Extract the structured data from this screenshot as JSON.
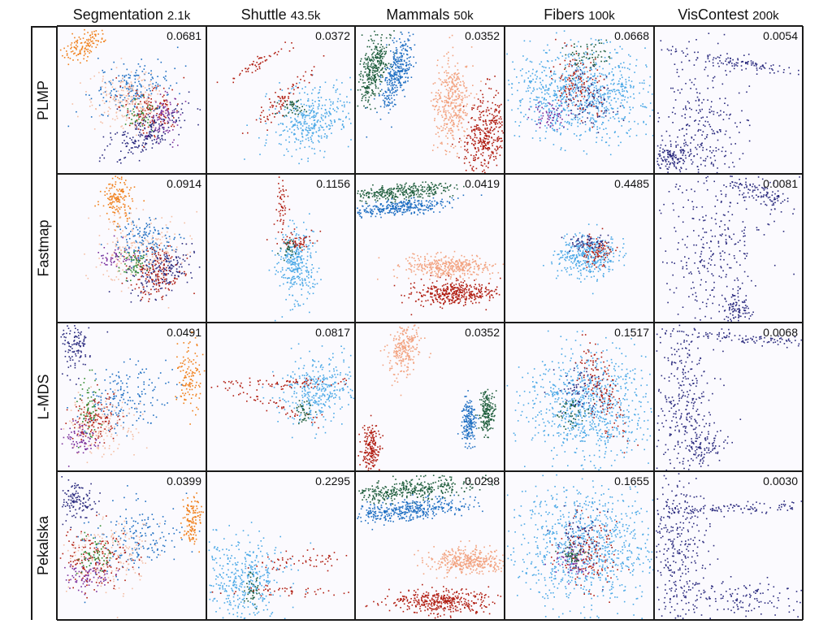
{
  "figure": {
    "datasets": [
      {
        "name": "Segmentation",
        "size": "2.1k"
      },
      {
        "name": "Shuttle",
        "size": "43.5k"
      },
      {
        "name": "Mammals",
        "size": "50k"
      },
      {
        "name": "Fibers",
        "size": "100k"
      },
      {
        "name": "VisContest",
        "size": "200k"
      }
    ],
    "methods": [
      "PLMP",
      "Fastmap",
      "L-MDS",
      "Pekalska"
    ],
    "stress": [
      [
        "0.0681",
        "0.0372",
        "0.0352",
        "0.0668",
        "0.0054"
      ],
      [
        "0.0914",
        "0.1156",
        "0.0419",
        "0.4485",
        "0.0081"
      ],
      [
        "0.0491",
        "0.0817",
        "0.0352",
        "0.1517",
        "0.0068"
      ],
      [
        "0.0399",
        "0.2295",
        "0.0298",
        "0.1655",
        "0.0030"
      ]
    ],
    "colors": {
      "orange": "#f07f1a",
      "light_blue": "#4aa8e6",
      "blue": "#1f6fc2",
      "navy": "#2a2a7e",
      "dark_red": "#b01c10",
      "salmon": "#f2a27f",
      "peach": "#f4bfa5",
      "dark_green": "#1f5e3c",
      "green": "#2f8a2f",
      "purple": "#7a2f9c",
      "grid": "#1a1a1a",
      "panel_bg": "#fbfafe"
    }
  },
  "chart_data": {
    "type": "scatter",
    "layout": "small-multiples grid: rows = projection methods, columns = datasets; each panel is a 2D scatter of projected points with stress value in top-right",
    "rows": [
      "PLMP",
      "Fastmap",
      "L-MDS",
      "Pekalska"
    ],
    "columns": [
      "Segmentation 2.1k",
      "Shuttle 43.5k",
      "Mammals 50k",
      "Fibers 100k",
      "VisContest 200k"
    ],
    "stress": [
      [
        0.0681,
        0.0372,
        0.0352,
        0.0668,
        0.0054
      ],
      [
        0.0914,
        0.1156,
        0.0419,
        0.4485,
        0.0081
      ],
      [
        0.0491,
        0.0817,
        0.0352,
        0.1517,
        0.0068
      ],
      [
        0.0399,
        0.2295,
        0.0298,
        0.1655,
        0.003
      ]
    ],
    "grid": false,
    "axes": "none"
  }
}
